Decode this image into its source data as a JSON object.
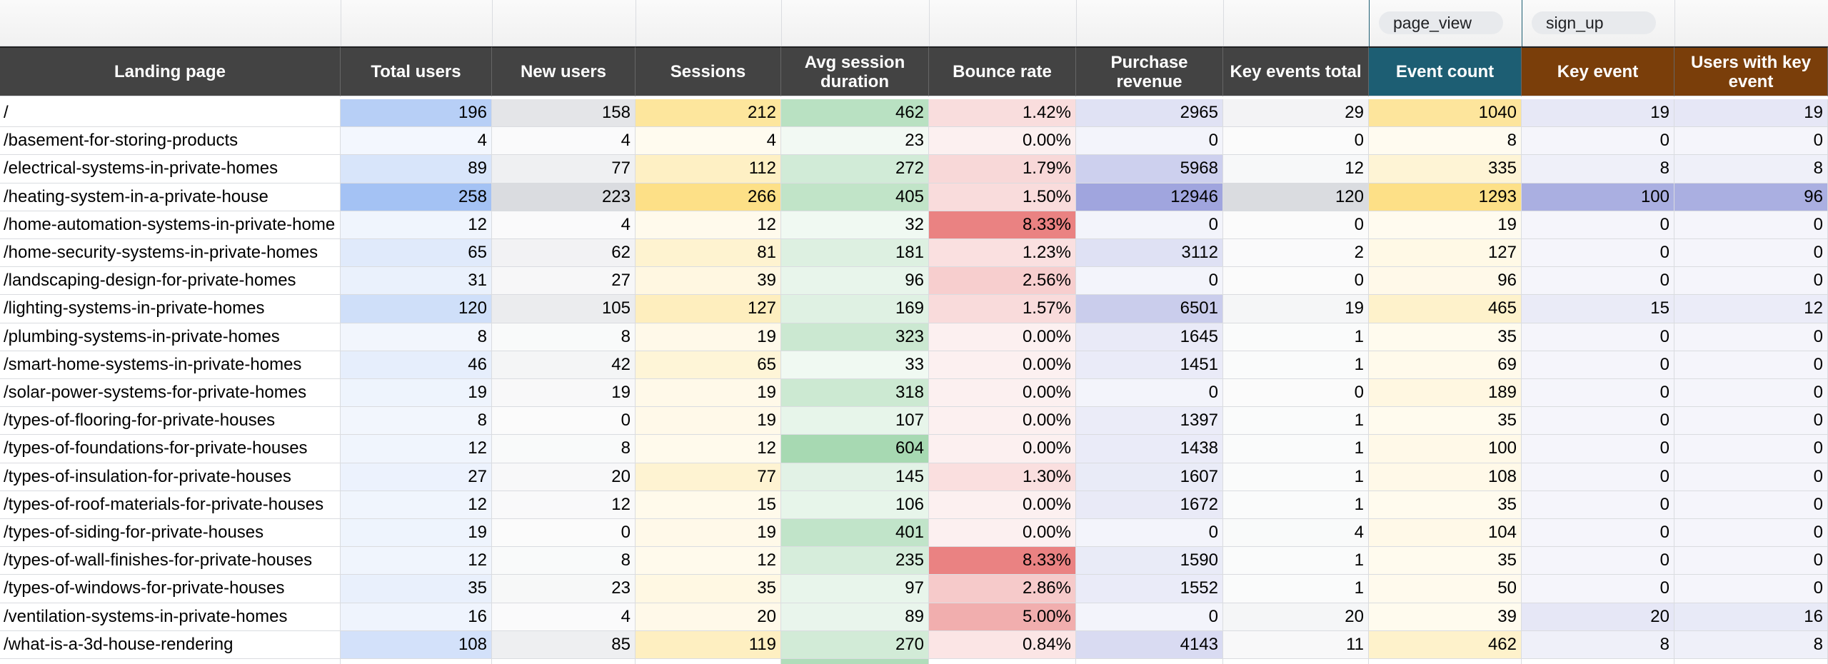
{
  "filters": [
    "page_view",
    "sign_up"
  ],
  "table": {
    "headers": [
      "Landing page",
      "Total users",
      "New users",
      "Sessions",
      "Avg session duration",
      "Bounce rate",
      "Purchase revenue",
      "Key events total",
      "Event count",
      "Key event",
      "Users with key event"
    ],
    "rows": [
      [
        "/",
        196,
        158,
        212,
        462,
        "1.42%",
        2965,
        29,
        1040,
        19,
        19
      ],
      [
        "/basement-for-storing-products",
        4,
        4,
        4,
        23,
        "0.00%",
        0,
        0,
        8,
        0,
        0
      ],
      [
        "/electrical-systems-in-private-homes",
        89,
        77,
        112,
        272,
        "1.79%",
        5968,
        12,
        335,
        8,
        8
      ],
      [
        "/heating-system-in-a-private-house",
        258,
        223,
        266,
        405,
        "1.50%",
        12946,
        120,
        1293,
        100,
        96
      ],
      [
        "/home-automation-systems-in-private-home",
        12,
        4,
        12,
        32,
        "8.33%",
        0,
        0,
        19,
        0,
        0
      ],
      [
        "/home-security-systems-in-private-homes",
        65,
        62,
        81,
        181,
        "1.23%",
        3112,
        2,
        127,
        0,
        0
      ],
      [
        "/landscaping-design-for-private-homes",
        31,
        27,
        39,
        96,
        "2.56%",
        0,
        0,
        96,
        0,
        0
      ],
      [
        "/lighting-systems-in-private-homes",
        120,
        105,
        127,
        169,
        "1.57%",
        6501,
        19,
        465,
        15,
        12
      ],
      [
        "/plumbing-systems-in-private-homes",
        8,
        8,
        19,
        323,
        "0.00%",
        1645,
        1,
        35,
        0,
        0
      ],
      [
        "/smart-home-systems-in-private-homes",
        46,
        42,
        65,
        33,
        "0.00%",
        1451,
        1,
        69,
        0,
        0
      ],
      [
        "/solar-power-systems-for-private-homes",
        19,
        19,
        19,
        318,
        "0.00%",
        0,
        0,
        189,
        0,
        0
      ],
      [
        "/types-of-flooring-for-private-houses",
        8,
        0,
        19,
        107,
        "0.00%",
        1397,
        1,
        35,
        0,
        0
      ],
      [
        "/types-of-foundations-for-private-houses",
        12,
        8,
        12,
        604,
        "0.00%",
        1438,
        1,
        100,
        0,
        0
      ],
      [
        "/types-of-insulation-for-private-houses",
        27,
        20,
        77,
        145,
        "1.30%",
        1607,
        1,
        108,
        0,
        0
      ],
      [
        "/types-of-roof-materials-for-private-houses",
        12,
        12,
        15,
        106,
        "0.00%",
        1672,
        1,
        35,
        0,
        0
      ],
      [
        "/types-of-siding-for-private-houses",
        19,
        0,
        19,
        401,
        "0.00%",
        0,
        4,
        104,
        0,
        0
      ],
      [
        "/types-of-wall-finishes-for-private-houses",
        12,
        8,
        12,
        235,
        "8.33%",
        1590,
        1,
        35,
        0,
        0
      ],
      [
        "/types-of-windows-for-private-houses",
        35,
        23,
        35,
        97,
        "2.86%",
        1552,
        1,
        50,
        0,
        0
      ],
      [
        "/ventilation-systems-in-private-homes",
        16,
        4,
        20,
        89,
        "5.00%",
        0,
        20,
        39,
        20,
        16
      ],
      [
        "/what-is-a-3d-house-rendering",
        108,
        85,
        119,
        270,
        "0.84%",
        4143,
        11,
        462,
        8,
        8
      ]
    ]
  }
}
